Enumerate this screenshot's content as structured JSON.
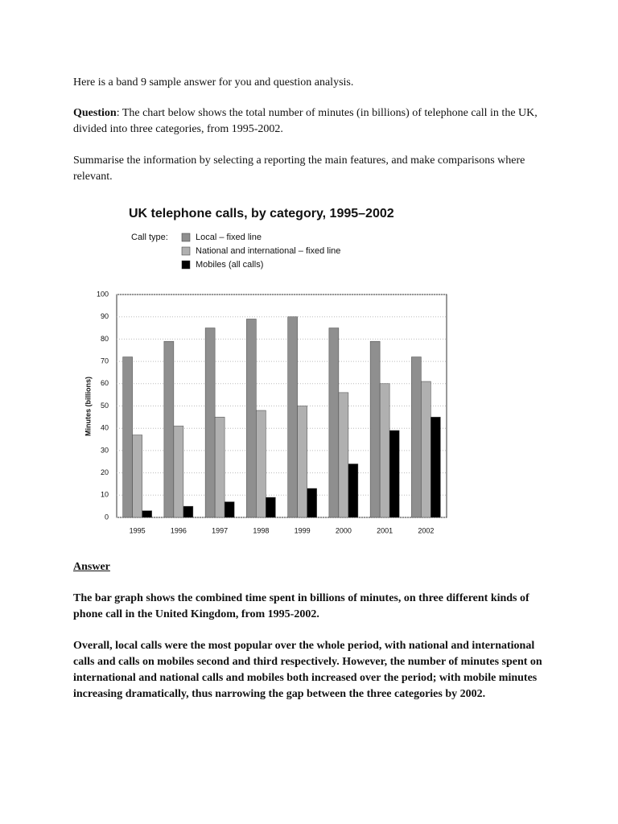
{
  "intro": "Here is a band 9 sample answer for you and question analysis.",
  "question": {
    "label": "Question",
    "text": ": The chart below shows the total number of minutes (in billions) of telephone call in the UK, divided into three categories, from 1995-2002."
  },
  "instruction": "Summarise the information by selecting a reporting the main features, and make comparisons where relevant.",
  "chart_data": {
    "type": "bar",
    "title": "UK telephone calls, by category, 1995–2002",
    "legend_title": "Call type:",
    "ylabel": "Minutes (billions)",
    "categories": [
      "1995",
      "1996",
      "1997",
      "1998",
      "1999",
      "2000",
      "2001",
      "2002"
    ],
    "series": [
      {
        "name": "Local – fixed line",
        "color": "#8f8f8f",
        "values": [
          72,
          79,
          85,
          89,
          90,
          85,
          79,
          72
        ]
      },
      {
        "name": "National and international – fixed line",
        "color": "#b0b0b0",
        "values": [
          37,
          41,
          45,
          48,
          50,
          56,
          60,
          61
        ]
      },
      {
        "name": "Mobiles (all calls)",
        "color": "#000000",
        "values": [
          3,
          5,
          7,
          9,
          13,
          24,
          39,
          45
        ]
      }
    ],
    "ylim": [
      0,
      100
    ],
    "yticks": [
      0,
      10,
      20,
      30,
      40,
      50,
      60,
      70,
      80,
      90,
      100
    ],
    "grid": true
  },
  "answer": {
    "heading": "Answer",
    "paragraphs": [
      "The bar graph shows the combined time spent in billions of minutes, on three different kinds of phone call in the United Kingdom, from 1995-2002.",
      "Overall, local calls were the most popular over the whole period, with national and international calls and calls on mobiles second and third respectively. However, the number of minutes spent on international and national calls and mobiles both increased over the period; with mobile minutes increasing dramatically, thus narrowing the gap between the three categories by 2002."
    ]
  }
}
